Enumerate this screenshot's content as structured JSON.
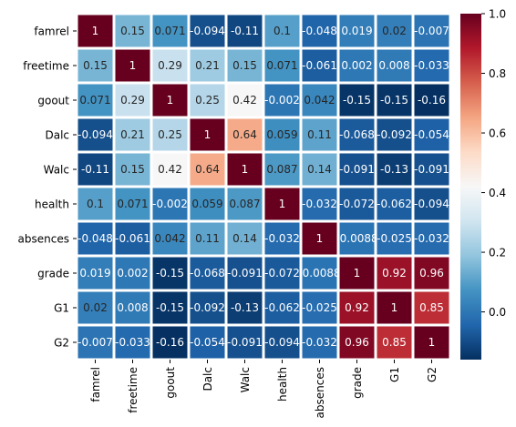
{
  "chart_data": {
    "type": "heatmap",
    "rows": [
      "famrel",
      "freetime",
      "goout",
      "Dalc",
      "Walc",
      "health",
      "absences",
      "grade",
      "G1",
      "G2"
    ],
    "cols": [
      "famrel",
      "freetime",
      "goout",
      "Dalc",
      "Walc",
      "health",
      "absences",
      "grade",
      "G1",
      "G2"
    ],
    "values": [
      [
        1,
        0.15,
        0.071,
        -0.094,
        -0.11,
        0.1,
        -0.048,
        0.019,
        0.02,
        -0.007
      ],
      [
        0.15,
        1,
        0.29,
        0.21,
        0.15,
        0.071,
        -0.061,
        0.002,
        0.008,
        -0.033
      ],
      [
        0.071,
        0.29,
        1,
        0.25,
        0.42,
        -0.002,
        0.042,
        -0.15,
        -0.15,
        -0.16
      ],
      [
        -0.094,
        0.21,
        0.25,
        1,
        0.64,
        0.059,
        0.11,
        -0.068,
        -0.092,
        -0.054
      ],
      [
        -0.11,
        0.15,
        0.42,
        0.64,
        1,
        0.087,
        0.14,
        -0.091,
        -0.13,
        -0.091
      ],
      [
        0.1,
        0.071,
        -0.002,
        0.059,
        0.087,
        1,
        -0.032,
        -0.072,
        -0.062,
        -0.094
      ],
      [
        -0.048,
        -0.061,
        0.042,
        0.11,
        0.14,
        -0.032,
        1,
        -0.0088,
        -0.025,
        -0.032
      ],
      [
        0.019,
        0.002,
        -0.15,
        -0.068,
        -0.091,
        -0.072,
        -0.0088,
        1,
        0.92,
        0.96
      ],
      [
        0.02,
        0.008,
        -0.15,
        -0.092,
        -0.13,
        -0.062,
        -0.025,
        0.92,
        1,
        0.85
      ],
      [
        -0.007,
        -0.033,
        -0.16,
        -0.054,
        -0.091,
        -0.094,
        -0.032,
        0.96,
        0.85,
        1
      ]
    ],
    "labels": [
      [
        "1",
        "0.15",
        "0.071",
        "-0.094",
        "-0.11",
        "0.1",
        "-0.048",
        "0.019",
        "0.02",
        "-0.007"
      ],
      [
        "0.15",
        "1",
        "0.29",
        "0.21",
        "0.15",
        "0.071",
        "-0.061",
        "0.002",
        "0.008",
        "-0.033"
      ],
      [
        "0.071",
        "0.29",
        "1",
        "0.25",
        "0.42",
        "-0.002",
        "0.042",
        "-0.15",
        "-0.15",
        "-0.16"
      ],
      [
        "-0.094",
        "0.21",
        "0.25",
        "1",
        "0.64",
        "0.059",
        "0.11",
        "-0.068",
        "-0.092",
        "-0.054"
      ],
      [
        "-0.11",
        "0.15",
        "0.42",
        "0.64",
        "1",
        "0.087",
        "0.14",
        "-0.091",
        "-0.13",
        "-0.091"
      ],
      [
        "0.1",
        "0.071",
        "-0.002",
        "0.059",
        "0.087",
        "1",
        "-0.032",
        "-0.072",
        "-0.062",
        "-0.094"
      ],
      [
        "-0.048",
        "-0.061",
        "0.042",
        "0.11",
        "0.14",
        "-0.032",
        "1",
        "-0.0088",
        "-0.025",
        "-0.032"
      ],
      [
        "0.019",
        "0.002",
        "-0.15",
        "-0.068",
        "-0.091",
        "-0.072",
        "-0.0088",
        "1",
        "0.92",
        "0.96"
      ],
      [
        "0.02",
        "0.008",
        "-0.15",
        "-0.092",
        "-0.13",
        "-0.062",
        "-0.025",
        "0.92",
        "1",
        "0.85"
      ],
      [
        "-0.007",
        "-0.033",
        "-0.16",
        "-0.054",
        "-0.091",
        "-0.094",
        "-0.032",
        "0.96",
        "0.85",
        "1"
      ]
    ],
    "colormap": "RdBu_r",
    "vmin": -0.16,
    "vmax": 1,
    "colorbar_ticks": [
      0.0,
      0.2,
      0.4,
      0.6,
      0.8,
      1.0
    ],
    "colorbar_tick_labels": [
      "0.0",
      "0.2",
      "0.4",
      "0.6",
      "0.8",
      "1.0"
    ],
    "cell_border_color": "#ffffff",
    "title": "",
    "xlabel": "",
    "ylabel": ""
  }
}
